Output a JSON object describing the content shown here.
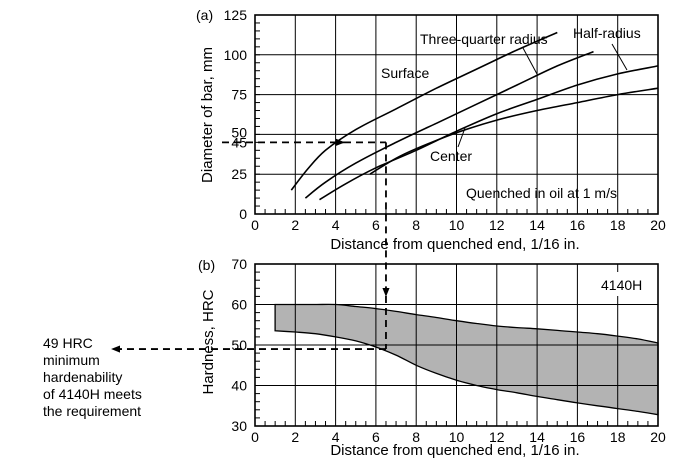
{
  "chart_data": [
    {
      "panel": "(a)",
      "type": "line",
      "xlabel": "Distance from quenched end, 1/16 in.",
      "ylabel": "Diameter of bar, mm",
      "xlim": [
        0,
        20
      ],
      "ylim": [
        0,
        125
      ],
      "x_ticks": [
        "0",
        "2",
        "4",
        "6",
        "8",
        "10",
        "12",
        "14",
        "16",
        "18",
        "20"
      ],
      "y_ticks": [
        "0",
        "25",
        "50",
        "75",
        "100",
        "125"
      ],
      "y_extra_tick": "45",
      "grid": true,
      "annotation": "Quenched in oil at 1 m/s",
      "series": [
        {
          "name": "Surface",
          "x": [
            1.8,
            2.6,
            3.5,
            5,
            7,
            9,
            11,
            13,
            15
          ],
          "y": [
            15,
            28,
            40,
            53,
            66,
            79,
            91,
            103,
            114
          ]
        },
        {
          "name": "Three-quarter radius",
          "x": [
            2.5,
            3.5,
            5,
            7,
            9,
            11,
            13,
            15,
            16.8
          ],
          "y": [
            10,
            20,
            32,
            45,
            57,
            69,
            81,
            93,
            102
          ]
        },
        {
          "name": "Half-radius",
          "x": [
            3.2,
            4.5,
            6,
            8,
            10,
            12,
            14,
            16,
            18,
            20
          ],
          "y": [
            9,
            19,
            29,
            40,
            52,
            63,
            72,
            81,
            88,
            93
          ]
        },
        {
          "name": "Center",
          "x": [
            5.7,
            7,
            8,
            10,
            12,
            14,
            16,
            18,
            20
          ],
          "y": [
            25,
            35,
            41,
            51,
            59,
            65,
            70,
            75,
            79
          ]
        }
      ],
      "reading": {
        "diameter_mm": 45,
        "distance": 6.5
      }
    },
    {
      "panel": "(b)",
      "type": "area",
      "label": "4140H",
      "xlabel": "Distance from quenched end, 1/16 in.",
      "ylabel": "Hardness, HRC",
      "xlim": [
        0,
        20
      ],
      "ylim": [
        30,
        70
      ],
      "x_ticks": [
        "0",
        "2",
        "4",
        "6",
        "8",
        "10",
        "12",
        "14",
        "16",
        "18",
        "20"
      ],
      "y_ticks": [
        "30",
        "40",
        "50",
        "60",
        "70"
      ],
      "grid": true,
      "band": {
        "x": [
          1,
          2,
          3,
          4,
          5,
          6,
          7,
          8,
          9,
          10,
          11,
          12,
          13,
          14,
          15,
          16,
          17,
          18,
          19,
          20
        ],
        "upper": [
          60,
          60,
          60,
          60,
          59.5,
          59,
          58.3,
          57.5,
          56.8,
          56,
          55.3,
          54.7,
          54.3,
          54,
          53.6,
          53.2,
          52.8,
          52.2,
          51.5,
          50.5
        ],
        "lower": [
          53.5,
          53.2,
          52.8,
          52,
          51,
          49.5,
          47.5,
          45,
          43,
          41.3,
          40,
          39,
          38.2,
          37.3,
          36.5,
          35.7,
          35,
          34.3,
          33.6,
          32.8
        ]
      },
      "reading": {
        "hardness_hrc": 49,
        "distance": 6.5
      }
    }
  ],
  "note_lines": [
    "49 HRC",
    "minimum",
    "hardenability",
    "of 4140H meets",
    "the requirement"
  ]
}
